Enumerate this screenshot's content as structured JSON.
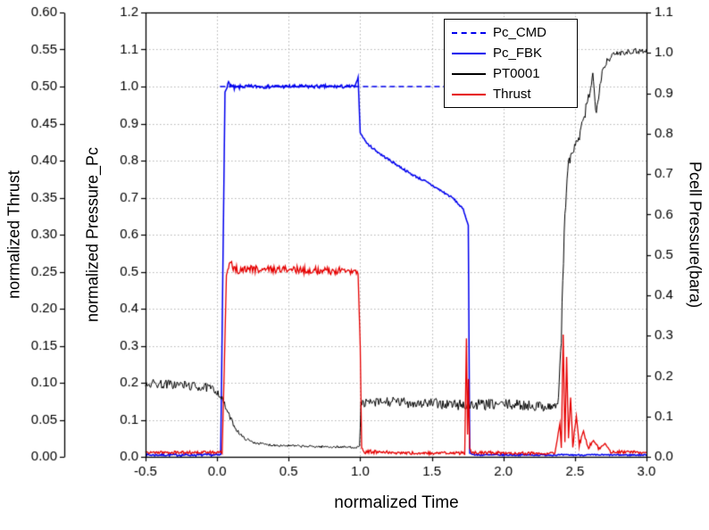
{
  "background": "#ffffff",
  "chart_data": {
    "type": "line",
    "title": "",
    "xlabel": "normalized Time",
    "grid": {
      "show": true,
      "color": "#b5b5b5"
    },
    "x_axis": {
      "range": [
        -0.5,
        3.0
      ],
      "tick_values": [
        -0.5,
        0.0,
        0.5,
        1.0,
        1.5,
        2.0,
        2.5,
        3.0
      ],
      "tick_labels": [
        "-0.5",
        "0.0",
        "0.5",
        "1.0",
        "1.5",
        "2.0",
        "2.5",
        "3.0"
      ]
    },
    "axes": {
      "thrust": {
        "label": "normalized Thrust",
        "position": "outer-left",
        "range": [
          0,
          0.6
        ],
        "tick_values": [
          0,
          0.05,
          0.1,
          0.15,
          0.2,
          0.25,
          0.3,
          0.35,
          0.4,
          0.45,
          0.5,
          0.55,
          0.6
        ],
        "tick_labels": [
          "0.00",
          "0.05",
          "0.10",
          "0.15",
          "0.20",
          "0.25",
          "0.30",
          "0.35",
          "0.40",
          "0.45",
          "0.50",
          "0.55",
          "0.60"
        ]
      },
      "pc": {
        "label": "normalized Pressure_Pc",
        "position": "inner-left",
        "range": [
          0,
          1.2
        ],
        "tick_values": [
          0,
          0.1,
          0.2,
          0.3,
          0.4,
          0.5,
          0.6,
          0.7,
          0.8,
          0.9,
          1.0,
          1.1,
          1.2
        ],
        "tick_labels": [
          "0.0",
          "0.1",
          "0.2",
          "0.3",
          "0.4",
          "0.5",
          "0.6",
          "0.7",
          "0.8",
          "0.9",
          "1.0",
          "1.1",
          "1.2"
        ]
      },
      "pcell": {
        "label": "Pcell Pressure(bara)",
        "position": "right",
        "range": [
          0,
          1.1
        ],
        "tick_values": [
          0,
          0.1,
          0.2,
          0.3,
          0.4,
          0.5,
          0.6,
          0.7,
          0.8,
          0.9,
          1.0,
          1.1
        ],
        "tick_labels": [
          "0.0",
          "0.1",
          "0.2",
          "0.3",
          "0.4",
          "0.5",
          "0.6",
          "0.7",
          "0.8",
          "0.9",
          "1.0",
          "1.1"
        ]
      }
    },
    "legend_position": "top-center-right",
    "series": [
      {
        "name": "Pc_CMD",
        "axis": "pc",
        "color": "#0000ee",
        "style": "dashed",
        "width": 1.4,
        "points": [
          [
            0.02,
            1.0,
            0
          ],
          [
            2.3,
            1.0,
            0
          ]
        ]
      },
      {
        "name": "Pc_FBK",
        "axis": "pc",
        "color": "#0000ee",
        "style": "solid",
        "width": 1.5,
        "points": [
          [
            -0.5,
            0.005,
            0.003
          ],
          [
            0.025,
            0.005,
            0.003
          ],
          [
            0.04,
            0.5,
            0
          ],
          [
            0.055,
            0.985,
            0
          ],
          [
            0.08,
            1.01,
            0.005
          ],
          [
            0.12,
            0.995,
            0.007
          ],
          [
            0.18,
            1.0,
            0.005
          ],
          [
            0.5,
            1.0,
            0.005
          ],
          [
            0.9,
            1.0,
            0.005
          ],
          [
            0.965,
            1.0,
            0.004
          ],
          [
            0.985,
            1.025,
            0
          ],
          [
            1.0,
            0.875,
            0
          ],
          [
            1.05,
            0.845,
            0.003
          ],
          [
            1.15,
            0.815,
            0.003
          ],
          [
            1.25,
            0.79,
            0.003
          ],
          [
            1.35,
            0.765,
            0.003
          ],
          [
            1.45,
            0.745,
            0.003
          ],
          [
            1.55,
            0.722,
            0.003
          ],
          [
            1.65,
            0.698,
            0.003
          ],
          [
            1.72,
            0.668,
            0.002
          ],
          [
            1.755,
            0.625,
            0
          ],
          [
            1.765,
            0.01,
            0
          ],
          [
            1.8,
            0.005,
            0.002
          ],
          [
            3.0,
            0.005,
            0.002
          ]
        ]
      },
      {
        "name": "PT0001",
        "axis": "pcell",
        "color": "#000000",
        "style": "solid",
        "width": 1.0,
        "points": [
          [
            -0.5,
            0.182,
            0.012
          ],
          [
            -0.25,
            0.178,
            0.012
          ],
          [
            -0.05,
            0.17,
            0.011
          ],
          [
            0.0,
            0.162,
            0.009
          ],
          [
            0.04,
            0.14,
            0.007
          ],
          [
            0.08,
            0.105,
            0.006
          ],
          [
            0.13,
            0.07,
            0.005
          ],
          [
            0.18,
            0.048,
            0.004
          ],
          [
            0.25,
            0.036,
            0.003
          ],
          [
            0.35,
            0.03,
            0.003
          ],
          [
            0.6,
            0.026,
            0.003
          ],
          [
            0.9,
            0.024,
            0.003
          ],
          [
            0.995,
            0.024,
            0.003
          ],
          [
            1.005,
            0.132,
            0.01
          ],
          [
            1.2,
            0.136,
            0.013
          ],
          [
            1.5,
            0.132,
            0.013
          ],
          [
            1.75,
            0.128,
            0.015
          ],
          [
            2.0,
            0.13,
            0.013
          ],
          [
            2.25,
            0.126,
            0.013
          ],
          [
            2.36,
            0.124,
            0.012
          ],
          [
            2.385,
            0.14,
            0.01
          ],
          [
            2.405,
            0.3,
            0.02
          ],
          [
            2.425,
            0.55,
            0.025
          ],
          [
            2.445,
            0.7,
            0.02
          ],
          [
            2.47,
            0.745,
            0.015
          ],
          [
            2.52,
            0.78,
            0.013
          ],
          [
            2.56,
            0.83,
            0.015
          ],
          [
            2.6,
            0.9,
            0.015
          ],
          [
            2.625,
            0.945,
            0.012
          ],
          [
            2.645,
            0.86,
            0.02
          ],
          [
            2.665,
            0.9,
            0.015
          ],
          [
            2.69,
            0.955,
            0.012
          ],
          [
            2.73,
            0.985,
            0.009
          ],
          [
            2.8,
            1.0,
            0.008
          ],
          [
            2.9,
            1.005,
            0.008
          ],
          [
            3.0,
            1.005,
            0.008
          ]
        ]
      },
      {
        "name": "Thrust",
        "axis": "thrust",
        "color": "#e60000",
        "style": "solid",
        "width": 1.3,
        "points": [
          [
            -0.5,
            0.006,
            0.002
          ],
          [
            0.035,
            0.006,
            0.002
          ],
          [
            0.05,
            0.12,
            0
          ],
          [
            0.065,
            0.245,
            0
          ],
          [
            0.09,
            0.262,
            0.004
          ],
          [
            0.13,
            0.252,
            0.006
          ],
          [
            0.2,
            0.254,
            0.005
          ],
          [
            0.5,
            0.253,
            0.005
          ],
          [
            0.8,
            0.251,
            0.005
          ],
          [
            0.95,
            0.252,
            0.005
          ],
          [
            0.985,
            0.248,
            0.004
          ],
          [
            1.0,
            0.15,
            0
          ],
          [
            1.01,
            0.012,
            0
          ],
          [
            1.03,
            0.007,
            0.003
          ],
          [
            1.3,
            0.005,
            0.002
          ],
          [
            1.6,
            0.005,
            0.002
          ],
          [
            1.73,
            0.005,
            0.002
          ],
          [
            1.742,
            0.16,
            0
          ],
          [
            1.75,
            0.03,
            0
          ],
          [
            1.756,
            0.105,
            0
          ],
          [
            1.764,
            0.012,
            0
          ],
          [
            1.78,
            0.006,
            0.002
          ],
          [
            2.1,
            0.005,
            0.002
          ],
          [
            2.36,
            0.005,
            0.002
          ],
          [
            2.395,
            0.045,
            0
          ],
          [
            2.405,
            0.012,
            0
          ],
          [
            2.418,
            0.165,
            0
          ],
          [
            2.43,
            0.02,
            0
          ],
          [
            2.442,
            0.135,
            0
          ],
          [
            2.455,
            0.025,
            0
          ],
          [
            2.47,
            0.08,
            0
          ],
          [
            2.485,
            0.015,
            0.004
          ],
          [
            2.51,
            0.055,
            0
          ],
          [
            2.53,
            0.015,
            0.004
          ],
          [
            2.56,
            0.035,
            0
          ],
          [
            2.59,
            0.012,
            0.004
          ],
          [
            2.63,
            0.022,
            0
          ],
          [
            2.67,
            0.01,
            0.003
          ],
          [
            2.71,
            0.018,
            0
          ],
          [
            2.75,
            0.007,
            0.002
          ],
          [
            3.0,
            0.006,
            0.002
          ]
        ]
      }
    ]
  }
}
